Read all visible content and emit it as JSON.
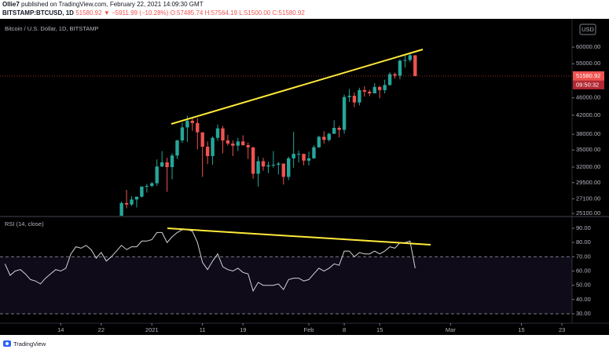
{
  "header": {
    "author": "Ollie7",
    "published": "published on TradingView.com, February 22, 2021 14:09:30 GMT",
    "symbol": "BITSTAMP:BTCUSD, 1D",
    "price": "51580.92",
    "arrow": "▼",
    "change": "−5911.99 (−10.28%)",
    "ohlc": "O:57485.74 H:57564.19 L:51500.00 C:51580.92"
  },
  "footer": {
    "brand": "TradingView"
  },
  "chart_data": [
    {
      "type": "candlestick",
      "title": "Bitcoin / U.S. Dollar, 1D, BITSTAMP",
      "currency": "USD",
      "last_price_label": "51580.92",
      "countdown": "09:50:32",
      "up_color": "#26a69a",
      "down_color": "#ef5350",
      "log_scale": true,
      "xlim": [
        "2020-12-02",
        "2021-03-25"
      ],
      "ylim": [
        24800,
        69600
      ],
      "yticks": [
        {
          "value": 60000,
          "label": "60000.00"
        },
        {
          "value": 55000,
          "label": "55000.00"
        },
        {
          "value": 46000,
          "label": "46000.00"
        },
        {
          "value": 42000,
          "label": "42000.00"
        },
        {
          "value": 38000,
          "label": "38000.00"
        },
        {
          "value": 35000,
          "label": "35000.00"
        },
        {
          "value": 32000,
          "label": "32000.00"
        },
        {
          "value": 29500,
          "label": "29500.00"
        },
        {
          "value": 27100,
          "label": "27100.00"
        },
        {
          "value": 25100,
          "label": "25100.00"
        }
      ],
      "x": [
        "2020-12-26",
        "2020-12-27",
        "2020-12-28",
        "2020-12-29",
        "2020-12-30",
        "2020-12-31",
        "2021-01-01",
        "2021-01-02",
        "2021-01-03",
        "2021-01-04",
        "2021-01-05",
        "2021-01-06",
        "2021-01-07",
        "2021-01-08",
        "2021-01-09",
        "2021-01-10",
        "2021-01-11",
        "2021-01-12",
        "2021-01-13",
        "2021-01-14",
        "2021-01-15",
        "2021-01-16",
        "2021-01-17",
        "2021-01-18",
        "2021-01-19",
        "2021-01-20",
        "2021-01-21",
        "2021-01-22",
        "2021-01-23",
        "2021-01-24",
        "2021-01-25",
        "2021-01-26",
        "2021-01-27",
        "2021-01-28",
        "2021-01-29",
        "2021-01-30",
        "2021-01-31",
        "2021-02-01",
        "2021-02-02",
        "2021-02-03",
        "2021-02-04",
        "2021-02-05",
        "2021-02-06",
        "2021-02-07",
        "2021-02-08",
        "2021-02-09",
        "2021-02-10",
        "2021-02-11",
        "2021-02-12",
        "2021-02-13",
        "2021-02-14",
        "2021-02-15",
        "2021-02-16",
        "2021-02-17",
        "2021-02-18",
        "2021-02-19",
        "2021-02-20",
        "2021-02-21",
        "2021-02-22"
      ],
      "open": [
        24700,
        26500,
        26300,
        27000,
        27400,
        28900,
        29000,
        29400,
        32100,
        32800,
        32000,
        34000,
        36800,
        39400,
        40800,
        40300,
        38400,
        35600,
        33900,
        37300,
        39200,
        36800,
        36200,
        35800,
        36600,
        35900,
        35500,
        30900,
        33000,
        32100,
        32300,
        32400,
        32600,
        30400,
        33500,
        34300,
        34300,
        33100,
        33500,
        35500,
        37500,
        36900,
        38100,
        39300,
        38900,
        46200,
        46500,
        44900,
        47900,
        47500,
        47100,
        48700,
        47900,
        49200,
        52100,
        51700,
        55900,
        56100,
        57485.74
      ],
      "high": [
        26700,
        28400,
        27500,
        27400,
        28900,
        29300,
        29600,
        33300,
        34800,
        33600,
        34400,
        36900,
        40400,
        41900,
        41400,
        41400,
        38400,
        36600,
        37600,
        40000,
        39700,
        37900,
        36800,
        37300,
        37800,
        36400,
        35500,
        33800,
        33600,
        32900,
        34800,
        32900,
        32600,
        33800,
        38500,
        34900,
        34300,
        34700,
        35900,
        37700,
        38600,
        38300,
        40900,
        39700,
        46800,
        48200,
        47300,
        48500,
        48900,
        48000,
        49700,
        49000,
        50600,
        52600,
        52500,
        56300,
        57500,
        58400,
        57564.19
      ],
      "low": [
        24500,
        25800,
        26100,
        25900,
        27300,
        28000,
        28800,
        29000,
        32000,
        28100,
        30000,
        33400,
        36300,
        36500,
        38700,
        35100,
        30400,
        32500,
        32400,
        36700,
        34400,
        35800,
        33900,
        34800,
        35800,
        33400,
        30100,
        28900,
        31400,
        31000,
        31900,
        30800,
        29200,
        29900,
        31900,
        32800,
        32300,
        32300,
        33400,
        35400,
        36200,
        36600,
        38100,
        37400,
        38100,
        45000,
        43800,
        44200,
        46300,
        46400,
        47100,
        45900,
        47100,
        49000,
        50900,
        50700,
        53900,
        55500,
        51500
      ],
      "close": [
        26500,
        26300,
        27000,
        27400,
        28900,
        29000,
        29400,
        32100,
        32800,
        32000,
        34000,
        36800,
        39400,
        40800,
        40300,
        38400,
        35600,
        33900,
        37300,
        39200,
        36800,
        36200,
        35800,
        36600,
        35900,
        35500,
        30900,
        33000,
        32100,
        32300,
        32400,
        32600,
        30400,
        33500,
        34300,
        34300,
        33100,
        33500,
        35500,
        37500,
        36900,
        38100,
        39300,
        38900,
        46200,
        46500,
        44900,
        47900,
        47500,
        47100,
        48700,
        47900,
        49200,
        52100,
        51700,
        55900,
        56100,
        57500,
        51580.92
      ]
    },
    {
      "type": "line",
      "title": "RSI (14, close)",
      "color": "#d1d4dc",
      "band": [
        30,
        70
      ],
      "band_color": "#7e57c2",
      "xlim": [
        "2020-12-02",
        "2021-03-25"
      ],
      "ylim": [
        23.4,
        97.7
      ],
      "yticks": [
        {
          "value": 90,
          "label": "90.00"
        },
        {
          "value": 80,
          "label": "80.00"
        },
        {
          "value": 70,
          "label": "70.00"
        },
        {
          "value": 60,
          "label": "60.00"
        },
        {
          "value": 50,
          "label": "50.00"
        },
        {
          "value": 40,
          "label": "40.00"
        },
        {
          "value": 30,
          "label": "30.00"
        }
      ],
      "xticks": [
        {
          "value": "2020-12-14",
          "label": "14"
        },
        {
          "value": "2020-12-22",
          "label": "22"
        },
        {
          "value": "2021-01-01",
          "label": "2021"
        },
        {
          "value": "2021-01-11",
          "label": "11"
        },
        {
          "value": "2021-01-19",
          "label": "19"
        },
        {
          "value": "2021-02-01",
          "label": "Feb"
        },
        {
          "value": "2021-02-08",
          "label": "8"
        },
        {
          "value": "2021-02-15",
          "label": "15"
        },
        {
          "value": "2021-03-01",
          "label": "Mar"
        },
        {
          "value": "2021-03-15",
          "label": "15"
        },
        {
          "value": "2021-03-23",
          "label": "23"
        }
      ],
      "x": [
        "2020-12-03",
        "2020-12-04",
        "2020-12-05",
        "2020-12-06",
        "2020-12-07",
        "2020-12-08",
        "2020-12-09",
        "2020-12-10",
        "2020-12-11",
        "2020-12-12",
        "2020-12-13",
        "2020-12-14",
        "2020-12-15",
        "2020-12-16",
        "2020-12-17",
        "2020-12-18",
        "2020-12-19",
        "2020-12-20",
        "2020-12-21",
        "2020-12-22",
        "2020-12-23",
        "2020-12-24",
        "2020-12-25",
        "2020-12-26",
        "2020-12-27",
        "2020-12-28",
        "2020-12-29",
        "2020-12-30",
        "2020-12-31",
        "2021-01-01",
        "2021-01-02",
        "2021-01-03",
        "2021-01-04",
        "2021-01-05",
        "2021-01-06",
        "2021-01-07",
        "2021-01-08",
        "2021-01-09",
        "2021-01-10",
        "2021-01-11",
        "2021-01-12",
        "2021-01-13",
        "2021-01-14",
        "2021-01-15",
        "2021-01-16",
        "2021-01-17",
        "2021-01-18",
        "2021-01-19",
        "2021-01-20",
        "2021-01-21",
        "2021-01-22",
        "2021-01-23",
        "2021-01-24",
        "2021-01-25",
        "2021-01-26",
        "2021-01-27",
        "2021-01-28",
        "2021-01-29",
        "2021-01-30",
        "2021-01-31",
        "2021-02-01",
        "2021-02-02",
        "2021-02-03",
        "2021-02-04",
        "2021-02-05",
        "2021-02-06",
        "2021-02-07",
        "2021-02-08",
        "2021-02-09",
        "2021-02-10",
        "2021-02-11",
        "2021-02-12",
        "2021-02-13",
        "2021-02-14",
        "2021-02-15",
        "2021-02-16",
        "2021-02-17",
        "2021-02-18",
        "2021-02-19",
        "2021-02-20",
        "2021-02-21",
        "2021-02-22"
      ],
      "values": [
        65,
        57,
        60,
        61,
        58,
        54,
        53,
        51,
        55,
        58,
        61,
        60,
        62,
        72,
        77,
        76,
        78,
        75,
        69,
        73,
        67,
        70,
        74,
        78,
        75,
        77,
        77,
        81,
        81,
        82,
        87,
        87,
        80,
        84,
        87,
        89,
        89,
        88,
        80,
        66,
        61,
        67,
        72,
        63,
        61,
        60,
        62,
        59,
        58,
        46,
        52,
        50,
        50,
        50,
        51,
        47,
        54,
        55,
        55,
        53,
        54,
        58,
        62,
        60,
        62,
        65,
        64,
        74,
        74,
        70,
        73,
        72,
        72,
        74,
        72,
        74,
        77,
        76,
        80,
        80,
        81,
        62
      ]
    }
  ]
}
